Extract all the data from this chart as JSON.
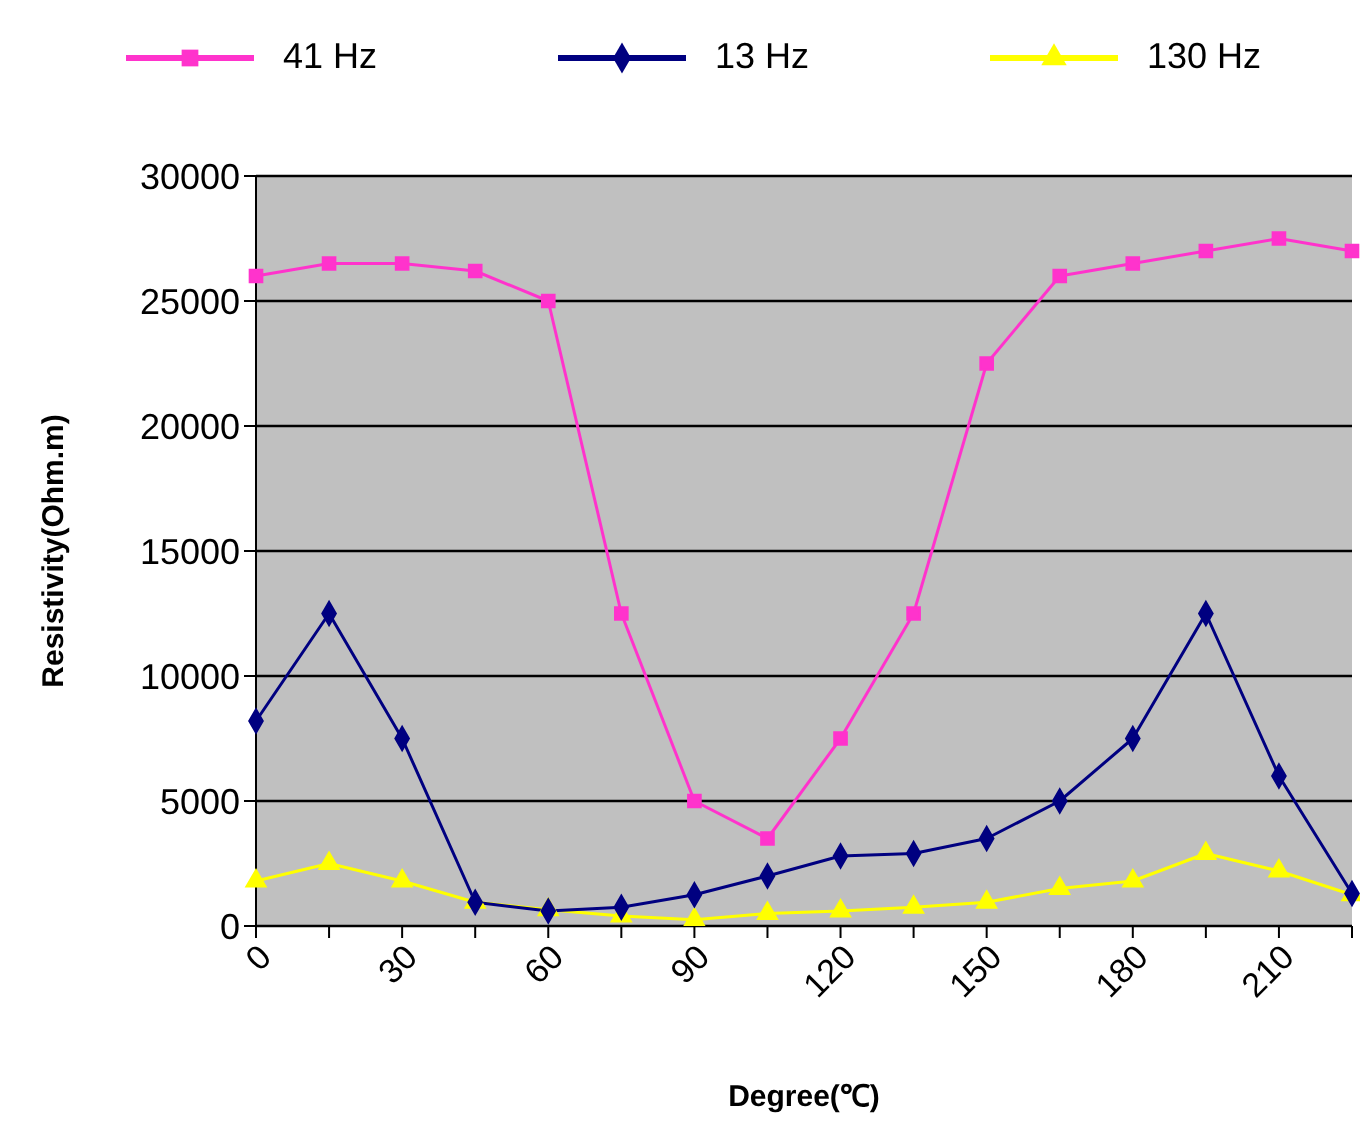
{
  "chart_data": {
    "type": "line",
    "xlabel": "Degree(℃)",
    "ylabel": "Resistivity(Ohm.m)",
    "categories": [
      "0",
      null,
      "30",
      null,
      "60",
      null,
      "90",
      null,
      "120",
      null,
      "150",
      null,
      "180",
      null,
      "210",
      null
    ],
    "series": [
      {
        "name": "41 Hz",
        "color": "#ff33cc",
        "marker": "square",
        "values": [
          26000,
          26500,
          26500,
          26200,
          25000,
          12500,
          5000,
          3500,
          7500,
          12500,
          22500,
          26000,
          26500,
          27000,
          27500,
          27000
        ]
      },
      {
        "name": "13 Hz",
        "color": "#000080",
        "marker": "diamond",
        "values": [
          8200,
          12500,
          7500,
          950,
          600,
          750,
          1250,
          2000,
          2800,
          2900,
          3500,
          5000,
          7500,
          12500,
          6000,
          1300
        ]
      },
      {
        "name": "130 Hz",
        "color": "#ffff00",
        "marker": "triangle",
        "values": [
          1800,
          2500,
          1800,
          950,
          650,
          400,
          250,
          500,
          600,
          750,
          950,
          1500,
          1800,
          2900,
          2200,
          1250
        ]
      }
    ],
    "ylim": [
      0,
      30000
    ],
    "yticks": [
      0,
      5000,
      10000,
      15000,
      20000,
      25000,
      30000
    ],
    "grid": "y",
    "legend": "top"
  }
}
